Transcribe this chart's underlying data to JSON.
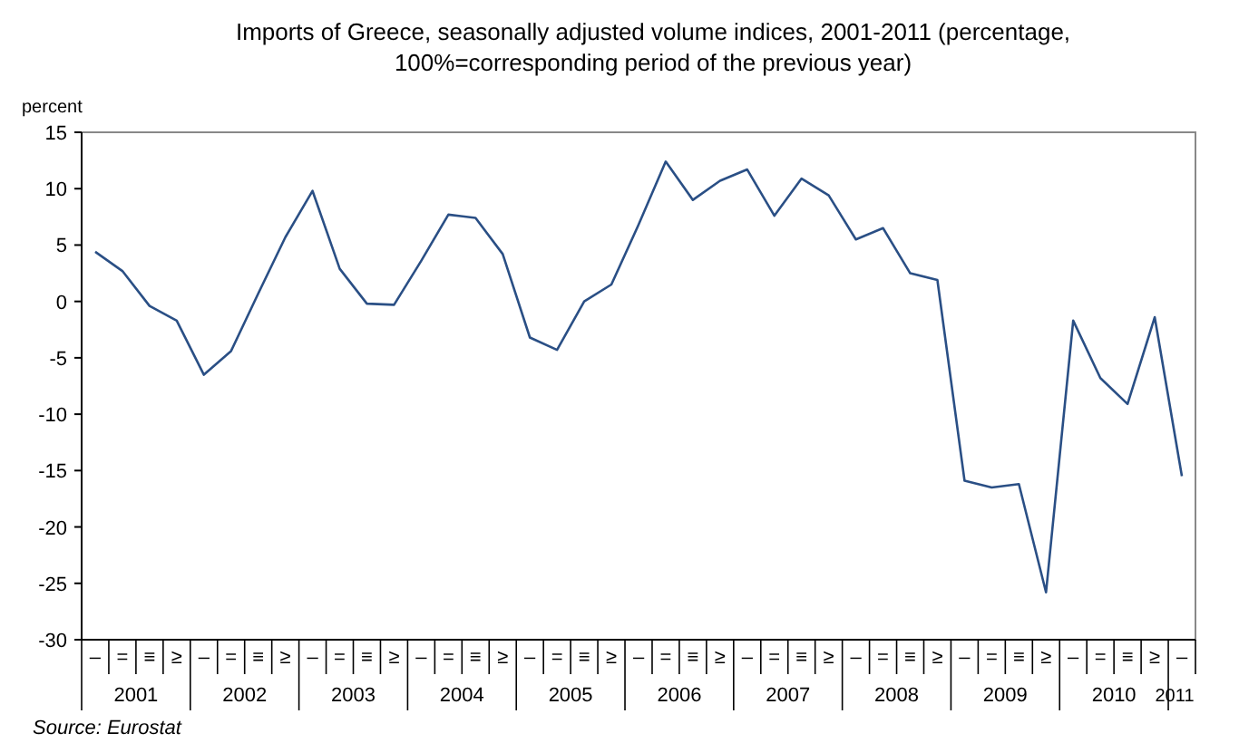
{
  "chart_data": {
    "type": "line",
    "title": "Imports of Greece, seasonally adjusted volume indices, 2001-2011 (percentage,\n100%=corresponding period of the previous year)",
    "ylabel": "percent",
    "categories": [
      "–",
      "=",
      "≡",
      "≥",
      "–",
      "=",
      "≡",
      "≥",
      "–",
      "=",
      "≡",
      "≥",
      "–",
      "=",
      "≡",
      "≥",
      "–",
      "=",
      "≡",
      "≥",
      "–",
      "=",
      "≡",
      "≥",
      "–",
      "=",
      "≡",
      "≥",
      "–",
      "=",
      "≡",
      "≥",
      "–",
      "=",
      "≡",
      "≥",
      "–",
      "=",
      "≡",
      "≥",
      "–"
    ],
    "series": [
      {
        "color": "#2a4f85",
        "values": [
          4.4,
          2.7,
          -0.4,
          -1.7,
          -6.5,
          -4.4,
          0.7,
          5.7,
          9.8,
          2.9,
          -0.2,
          -0.3,
          3.6,
          7.7,
          7.4,
          4.2,
          -3.2,
          -4.3,
          0.0,
          1.5,
          6.8,
          12.4,
          9.0,
          10.7,
          11.7,
          7.6,
          10.9,
          9.4,
          5.5,
          6.5,
          2.5,
          1.9,
          -15.9,
          -16.5,
          -16.2,
          -25.8,
          -1.7,
          -6.8,
          -9.1,
          -1.4,
          -15.5
        ]
      }
    ],
    "ylim": [
      -30,
      15
    ],
    "yticks": [
      -30,
      -25,
      -20,
      -15,
      -10,
      -5,
      0,
      5,
      10,
      15
    ],
    "grid": false,
    "marker": "none",
    "line_style": "solid",
    "annotations": [
      "2001",
      "2002",
      "2003",
      "2004",
      "2005",
      "2006",
      "2007",
      "2008",
      "2009",
      "2010",
      "2011",
      "Source: Eurostat"
    ]
  }
}
